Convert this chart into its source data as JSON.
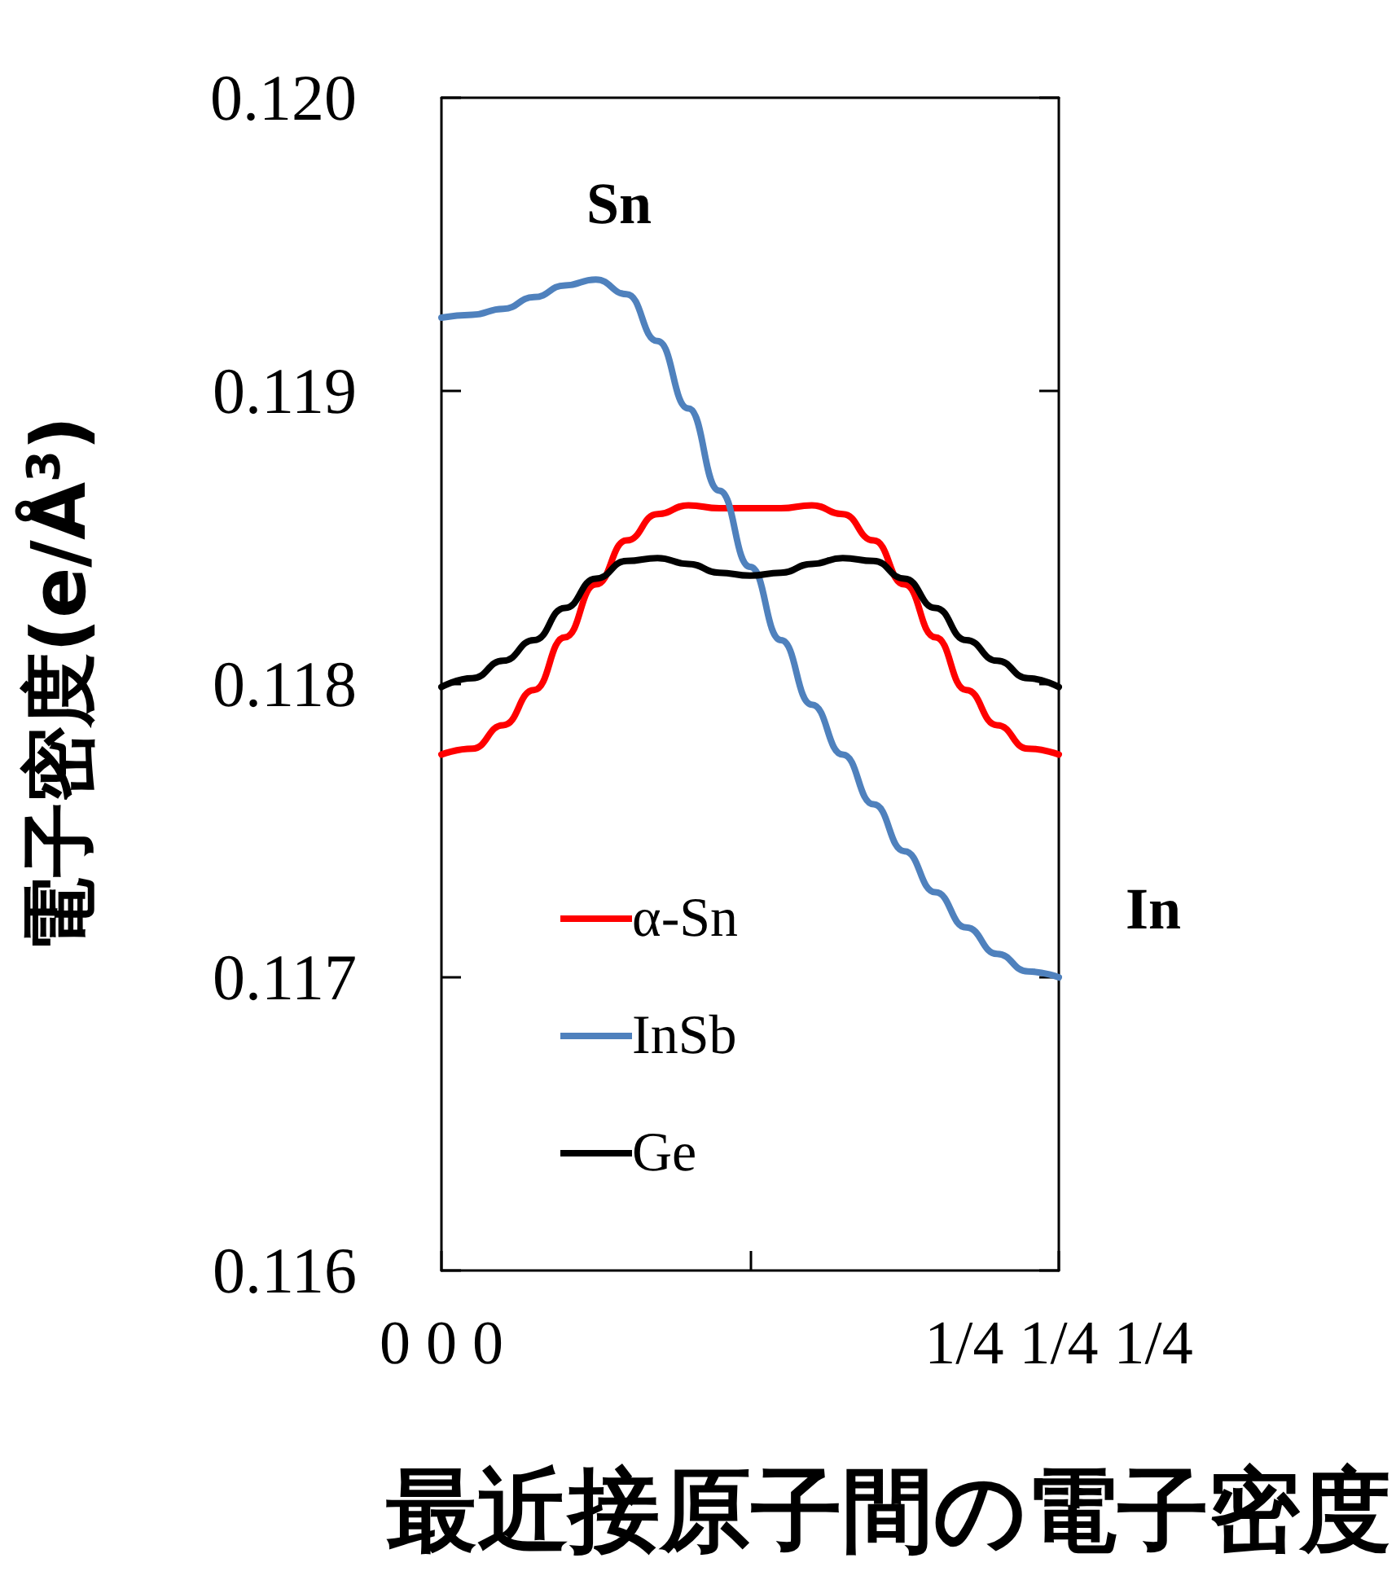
{
  "chart_data": {
    "type": "line",
    "xlabel": "最近接原子間の電子密度",
    "ylabel": "電子密度(e/Å$^{3}$)",
    "categories": [
      "0 0 0",
      null,
      null,
      null,
      null,
      null,
      null,
      null,
      null,
      null,
      null,
      null,
      null,
      null,
      null,
      null,
      null,
      null,
      null,
      null,
      "1/4 1/4 1/4"
    ],
    "series": [
      {
        "name": "α-Sn",
        "color": "#ff0000",
        "values": [
          0.11776,
          0.11778,
          0.11786,
          0.11798,
          0.11816,
          0.11834,
          0.11849,
          0.11858,
          0.11861,
          0.1186,
          0.1186,
          0.1186,
          0.11861,
          0.11858,
          0.11849,
          0.11834,
          0.11816,
          0.11798,
          0.11786,
          0.11778,
          0.11776
        ]
      },
      {
        "name": "InSb",
        "color": "#4f81bd",
        "values": [
          0.11925,
          0.11926,
          0.11928,
          0.11932,
          0.11936,
          0.11938,
          0.11933,
          0.11917,
          0.11894,
          0.11866,
          0.1184,
          0.11815,
          0.11793,
          0.11776,
          0.11759,
          0.11743,
          0.11729,
          0.11717,
          0.11708,
          0.11702,
          0.117
        ]
      },
      {
        "name": "Ge",
        "color": "#000000",
        "values": [
          0.11799,
          0.11802,
          0.11808,
          0.11815,
          0.11826,
          0.11836,
          0.11842,
          0.11843,
          0.11841,
          0.11838,
          0.11837,
          0.11838,
          0.11841,
          0.11843,
          0.11842,
          0.11836,
          0.11826,
          0.11815,
          0.11808,
          0.11802,
          0.11799
        ]
      }
    ],
    "ylim": [
      0.116,
      0.12
    ],
    "yticks": [
      0.116,
      0.117,
      0.118,
      0.119,
      {
        "value": 0.12,
        "label": "0.120"
      }
    ],
    "annotations": [
      "Sn",
      "In"
    ],
    "legend": "bottom left",
    "grid": false,
    "marker": "none",
    "line_style": "solid"
  }
}
